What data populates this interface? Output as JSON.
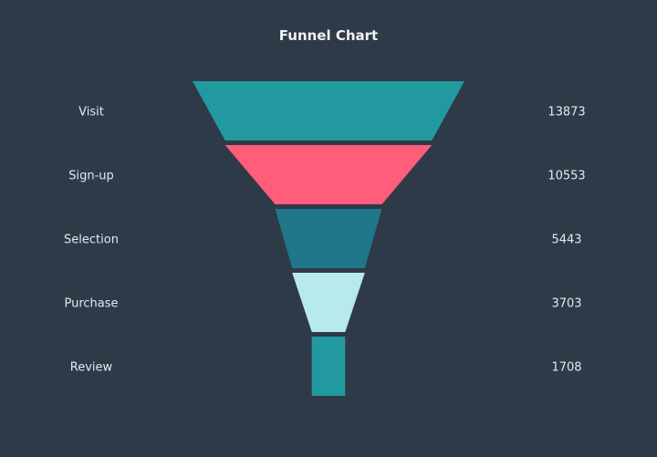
{
  "chart_data": {
    "type": "funnel",
    "title": "Funnel Chart",
    "categories": [
      "Visit",
      "Sign-up",
      "Selection",
      "Purchase",
      "Review"
    ],
    "values": [
      13873,
      10553,
      5443,
      3703,
      1708
    ],
    "colors": [
      "#22999f",
      "#ff5d79",
      "#1f7789",
      "#b8e9ec",
      "#22999f"
    ],
    "background": "#2e3a48",
    "text_color": "#e6e9ec",
    "grid": false,
    "legend": "none"
  }
}
